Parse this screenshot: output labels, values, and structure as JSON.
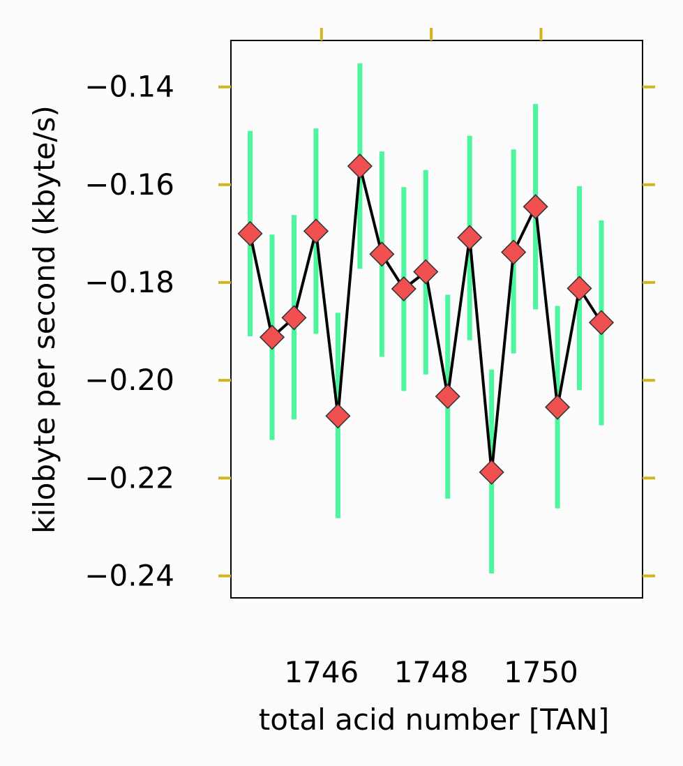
{
  "chart_data": {
    "type": "line",
    "xlabel": "total acid number [TAN]",
    "ylabel": "kilobyte per second (kbyte/s)",
    "xlim": [
      1744.35,
      1751.85
    ],
    "ylim": [
      -0.2445,
      -0.1305
    ],
    "xticks": [
      1746,
      1748,
      1750
    ],
    "xtick_labels": [
      "1746",
      "1748",
      "1750"
    ],
    "yticks": [
      -0.14,
      -0.16,
      -0.18,
      -0.2,
      -0.22,
      -0.24
    ],
    "ytick_labels": [
      "−0.14",
      "−0.16",
      "−0.18",
      "−0.20",
      "−0.22",
      "−0.24"
    ],
    "grid": false,
    "legend": "none",
    "series": [
      {
        "x": [
          1744.7,
          1745.1,
          1745.5,
          1745.9,
          1746.3,
          1746.7,
          1747.1,
          1747.5,
          1747.9,
          1748.3,
          1748.7,
          1749.1,
          1749.5,
          1749.9,
          1750.3,
          1750.7,
          1751.1
        ],
        "y": [
          -0.17,
          -0.1912,
          -0.1872,
          -0.1695,
          -0.2073,
          -0.1562,
          -0.1742,
          -0.1813,
          -0.1778,
          -0.2033,
          -0.1708,
          -0.2188,
          -0.1738,
          -0.1645,
          -0.2055,
          -0.1812,
          -0.1882
        ],
        "err_low": [
          -0.191,
          -0.2122,
          -0.208,
          -0.1905,
          -0.2282,
          -0.1772,
          -0.1952,
          -0.2022,
          -0.1988,
          -0.2242,
          -0.1918,
          -0.2395,
          -0.1945,
          -0.1855,
          -0.2262,
          -0.202,
          -0.2092
        ],
        "err_high": [
          -0.149,
          -0.1702,
          -0.1662,
          -0.1485,
          -0.1862,
          -0.1352,
          -0.1532,
          -0.1605,
          -0.157,
          -0.1825,
          -0.15,
          -0.1978,
          -0.1528,
          -0.1435,
          -0.1848,
          -0.1603,
          -0.1673
        ]
      }
    ],
    "colors": {
      "line": "#000000",
      "marker_fill": "#f05050",
      "marker_edge": "#303030",
      "errorbar": "#4cf59e",
      "ticks": "#d4b31e",
      "frame": "#000000"
    }
  }
}
